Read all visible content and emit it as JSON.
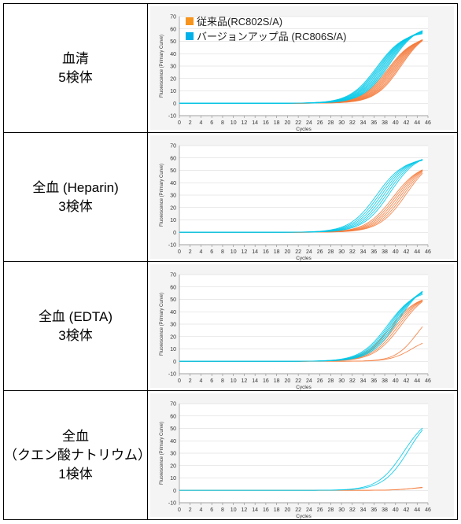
{
  "legend": [
    {
      "label": "従来品(RC802S/A)",
      "color": "#f7941d"
    },
    {
      "label": "バージョンアップ品 (RC806S/A)",
      "color": "#00b0e8"
    }
  ],
  "rows": [
    {
      "label_lines": [
        "血清",
        "5検体"
      ]
    },
    {
      "label_lines": [
        "全血 (Heparin)",
        "3検体"
      ]
    },
    {
      "label_lines": [
        "全血 (EDTA)",
        "3検体"
      ]
    },
    {
      "label_lines": [
        "全血",
        "（クエン酸ナトリウム）",
        "1検体"
      ]
    }
  ],
  "chart_data": [
    {
      "type": "line",
      "title": "",
      "xlabel": "Cycles",
      "ylabel": "Fluorescence (Primary Curve)",
      "xlim": [
        0,
        46
      ],
      "ylim": [
        -10,
        70
      ],
      "xticks": [
        "0",
        "2",
        "4",
        "6",
        "8",
        "10",
        "12",
        "14",
        "16",
        "18",
        "20",
        "22",
        "24",
        "26",
        "28",
        "30",
        "32",
        "34",
        "36",
        "38",
        "40",
        "42",
        "44",
        "46"
      ],
      "yticks": [
        "-10",
        "0",
        "10",
        "20",
        "30",
        "40",
        "50",
        "60",
        "70"
      ],
      "grid": true,
      "legend_position": "top-left",
      "series": [
        {
          "group": "RC802S/A",
          "color": "#f47b3c",
          "count": 10,
          "plateau": [
            54,
            60
          ],
          "midpoint": [
            38.5,
            41.0
          ],
          "slope": 0.42
        },
        {
          "group": "RC806S/A",
          "color": "#00c8e8",
          "count": 10,
          "plateau": [
            58,
            64
          ],
          "midpoint": [
            36.5,
            39.0
          ],
          "slope": 0.4
        }
      ]
    },
    {
      "type": "line",
      "title": "",
      "xlabel": "Cycles",
      "ylabel": "Fluorescence (Primary Curve)",
      "xlim": [
        0,
        46
      ],
      "ylim": [
        -10,
        70
      ],
      "xticks": [
        "0",
        "2",
        "4",
        "6",
        "8",
        "10",
        "12",
        "14",
        "16",
        "18",
        "20",
        "22",
        "24",
        "26",
        "28",
        "30",
        "32",
        "34",
        "36",
        "38",
        "40",
        "42",
        "44",
        "46"
      ],
      "yticks": [
        "-10",
        "0",
        "10",
        "20",
        "30",
        "40",
        "50",
        "60",
        "70"
      ],
      "grid": true,
      "series": [
        {
          "group": "RC802S/A",
          "color": "#f47b3c",
          "count": 6,
          "plateau": [
            56,
            62
          ],
          "midpoint": [
            39.5,
            42.0
          ],
          "slope": 0.4
        },
        {
          "group": "RC806S/A",
          "color": "#00c8e8",
          "count": 6,
          "plateau": [
            60,
            64
          ],
          "midpoint": [
            36.5,
            39.0
          ],
          "slope": 0.4
        }
      ]
    },
    {
      "type": "line",
      "title": "",
      "xlabel": "Cycles",
      "ylabel": "Fluorescence (Primary Curve)",
      "xlim": [
        0,
        46
      ],
      "ylim": [
        -10,
        70
      ],
      "xticks": [
        "0",
        "2",
        "4",
        "6",
        "8",
        "10",
        "12",
        "14",
        "16",
        "18",
        "20",
        "22",
        "24",
        "26",
        "28",
        "30",
        "32",
        "34",
        "36",
        "38",
        "40",
        "42",
        "44",
        "46"
      ],
      "yticks": [
        "-10",
        "0",
        "10",
        "20",
        "30",
        "40",
        "50",
        "60",
        "70"
      ],
      "grid": true,
      "series": [
        {
          "group": "RC802S/A",
          "color": "#f47b3c",
          "count": 5,
          "plateau": [
            54,
            58
          ],
          "midpoint": [
            39.0,
            41.0
          ],
          "slope": 0.4
        },
        {
          "group": "RC802S/A",
          "color": "#f47b3c",
          "count": 1,
          "plateau": [
            45,
            45
          ],
          "midpoint": [
            44.0,
            44.0
          ],
          "slope": 0.5
        },
        {
          "group": "RC802S/A",
          "color": "#f47b3c",
          "count": 1,
          "plateau": [
            20,
            20
          ],
          "midpoint": [
            43.0,
            43.0
          ],
          "slope": 0.5
        },
        {
          "group": "RC806S/A",
          "color": "#00c8e8",
          "count": 6,
          "plateau": [
            58,
            66
          ],
          "midpoint": [
            38.5,
            40.5
          ],
          "slope": 0.4
        }
      ]
    },
    {
      "type": "line",
      "title": "",
      "xlabel": "Cycles",
      "ylabel": "Fluorescence (Primary Curve)",
      "xlim": [
        0,
        46
      ],
      "ylim": [
        -10,
        70
      ],
      "xticks": [
        "0",
        "2",
        "4",
        "6",
        "8",
        "10",
        "12",
        "14",
        "16",
        "18",
        "20",
        "22",
        "24",
        "26",
        "28",
        "30",
        "32",
        "34",
        "36",
        "38",
        "40",
        "42",
        "44",
        "46"
      ],
      "yticks": [
        "-10",
        "0",
        "10",
        "20",
        "30",
        "40",
        "50",
        "60",
        "70"
      ],
      "grid": true,
      "series": [
        {
          "group": "RC802S/A",
          "color": "#f47b3c",
          "count": 2,
          "plateau": [
            3,
            4
          ],
          "midpoint": [
            43.0,
            44.0
          ],
          "slope": 0.5
        },
        {
          "group": "RC806S/A",
          "color": "#00c8e8",
          "count": 2,
          "plateau": [
            62,
            66
          ],
          "midpoint": [
            41.5,
            42.5
          ],
          "slope": 0.42
        }
      ]
    }
  ]
}
